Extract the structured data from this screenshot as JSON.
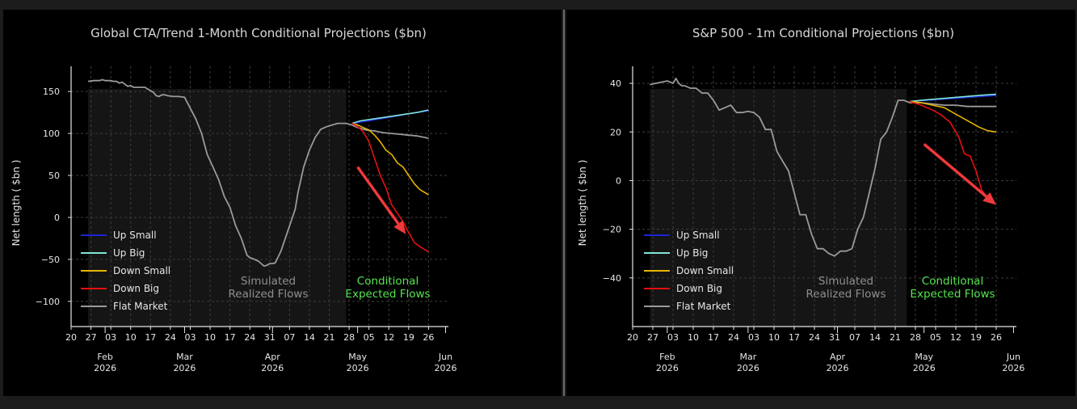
{
  "chart_data": [
    {
      "type": "line",
      "title": "Global CTA/Trend 1-Month Conditional Projections ($bn)",
      "ylabel": "Net length ( $bn )",
      "xlabel": "",
      "ylim": [
        -130,
        180
      ],
      "yticks": [
        150,
        100,
        50,
        0,
        -50,
        -100
      ],
      "ytick_labels": [
        "150",
        "100",
        "50",
        "0",
        "−50",
        "−100"
      ],
      "xticks": [
        {
          "label": "20",
          "day": 0
        },
        {
          "label": "27",
          "day": 7
        },
        {
          "label": "03",
          "day": 14
        },
        {
          "label": "10",
          "day": 21
        },
        {
          "label": "17",
          "day": 28
        },
        {
          "label": "24",
          "day": 35
        },
        {
          "label": "03",
          "day": 42
        },
        {
          "label": "10",
          "day": 49
        },
        {
          "label": "17",
          "day": 56
        },
        {
          "label": "24",
          "day": 63
        },
        {
          "label": "31",
          "day": 70
        },
        {
          "label": "07",
          "day": 77
        },
        {
          "label": "14",
          "day": 84
        },
        {
          "label": "21",
          "day": 91
        },
        {
          "label": "28",
          "day": 98
        },
        {
          "label": "05",
          "day": 105
        },
        {
          "label": "12",
          "day": 112
        },
        {
          "label": "19",
          "day": 119
        },
        {
          "label": "26",
          "day": 126
        }
      ],
      "months": [
        {
          "month": "Feb",
          "year": "2026",
          "day": 12
        },
        {
          "month": "Mar",
          "year": "2026",
          "day": 40
        },
        {
          "month": "Apr",
          "year": "2026",
          "day": 71
        },
        {
          "month": "May",
          "year": "2026",
          "day": 101
        },
        {
          "month": "Jun",
          "year": "2026",
          "day": 132
        }
      ],
      "xlim": [
        0,
        133
      ],
      "shade_x": [
        6,
        97
      ],
      "region_labels": {
        "simulated": [
          "Simulated",
          "Realized Flows"
        ],
        "conditional": [
          "Conditional",
          "Expected Flows"
        ]
      },
      "legend": [
        "Up Small",
        "Up Big",
        "Down Small",
        "Down Big",
        "Flat Market"
      ],
      "series": [
        {
          "name": "Flat Market",
          "color": "#9a9a9a",
          "x": [
            6,
            8,
            10,
            11,
            12,
            13,
            14,
            15,
            16,
            17,
            18,
            20,
            21,
            22,
            24,
            26,
            28,
            29,
            30,
            31,
            32,
            33,
            34,
            36,
            38,
            40,
            42,
            44,
            46,
            48,
            50,
            52,
            54,
            56,
            58,
            60,
            61,
            62,
            63,
            64,
            66,
            68,
            69,
            70,
            71,
            72,
            74,
            76,
            78,
            79,
            80,
            82,
            84,
            86,
            88,
            90,
            92,
            94,
            97,
            99,
            101,
            104,
            107,
            110,
            113,
            116,
            119,
            122,
            125,
            126
          ],
          "y": [
            162,
            163,
            163,
            164,
            163,
            163,
            163,
            162,
            162,
            160,
            161,
            156,
            157,
            155,
            155,
            155,
            151,
            149,
            145,
            144,
            146,
            146,
            145,
            144,
            144,
            143,
            130,
            117,
            100,
            75,
            60,
            45,
            25,
            12,
            -10,
            -25,
            -35,
            -45,
            -48,
            -49,
            -52,
            -58,
            -57,
            -55,
            -55,
            -54,
            -40,
            -20,
            0,
            10,
            30,
            60,
            80,
            95,
            105,
            108,
            110,
            112,
            112,
            110,
            107,
            104,
            103,
            101,
            100,
            99,
            98,
            97,
            95,
            94
          ]
        },
        {
          "name": "Up Small",
          "color": "#1e24d8",
          "x": [
            99,
            105,
            110,
            115,
            120,
            126
          ],
          "y": [
            112,
            115,
            118,
            121,
            124,
            127
          ]
        },
        {
          "name": "Up Big",
          "color": "#7fe6d6",
          "x": [
            99,
            102,
            106,
            110,
            114,
            118,
            122,
            126
          ],
          "y": [
            112,
            115,
            117,
            119,
            121,
            123,
            125,
            128
          ]
        },
        {
          "name": "Down Small",
          "color": "#e6b400",
          "x": [
            99,
            101,
            103,
            105,
            107,
            109,
            111,
            113,
            115,
            117,
            119,
            121,
            123,
            126
          ],
          "y": [
            112,
            110,
            107,
            104,
            98,
            90,
            80,
            75,
            65,
            60,
            50,
            40,
            33,
            27
          ]
        },
        {
          "name": "Down Big",
          "color": "#e60f0f",
          "x": [
            99,
            101,
            103,
            105,
            107,
            109,
            111,
            113,
            115,
            117,
            119,
            121,
            123,
            126
          ],
          "y": [
            112,
            108,
            102,
            90,
            70,
            50,
            35,
            15,
            5,
            -5,
            -18,
            -30,
            -35,
            -41
          ]
        }
      ],
      "arrow": {
        "from": [
          101,
          60
        ],
        "to": [
          118,
          -20
        ],
        "color": "#f0393b"
      }
    },
    {
      "type": "line",
      "title": "S&P 500 - 1m Conditional Projections ($bn)",
      "ylabel": "Net length ( $bn )",
      "xlabel": "",
      "ylim": [
        -60,
        47
      ],
      "yticks": [
        40,
        20,
        0,
        -20,
        -40
      ],
      "ytick_labels": [
        "40",
        "20",
        "0",
        "−20",
        "−40"
      ],
      "xticks": [
        {
          "label": "20",
          "day": 0
        },
        {
          "label": "27",
          "day": 7
        },
        {
          "label": "03",
          "day": 14
        },
        {
          "label": "10",
          "day": 21
        },
        {
          "label": "17",
          "day": 28
        },
        {
          "label": "24",
          "day": 35
        },
        {
          "label": "03",
          "day": 42
        },
        {
          "label": "10",
          "day": 49
        },
        {
          "label": "17",
          "day": 56
        },
        {
          "label": "24",
          "day": 63
        },
        {
          "label": "31",
          "day": 70
        },
        {
          "label": "07",
          "day": 77
        },
        {
          "label": "14",
          "day": 84
        },
        {
          "label": "21",
          "day": 91
        },
        {
          "label": "28",
          "day": 98
        },
        {
          "label": "05",
          "day": 105
        },
        {
          "label": "12",
          "day": 112
        },
        {
          "label": "19",
          "day": 119
        },
        {
          "label": "26",
          "day": 126
        }
      ],
      "months": [
        {
          "month": "Feb",
          "year": "2026",
          "day": 12
        },
        {
          "month": "Mar",
          "year": "2026",
          "day": 40
        },
        {
          "month": "Apr",
          "year": "2026",
          "day": 71
        },
        {
          "month": "May",
          "year": "2026",
          "day": 101
        },
        {
          "month": "Jun",
          "year": "2026",
          "day": 132
        }
      ],
      "xlim": [
        0,
        133
      ],
      "shade_x": [
        6,
        95
      ],
      "region_labels": {
        "simulated": [
          "Simulated",
          "Realized Flows"
        ],
        "conditional": [
          "Conditional",
          "Expected Flows"
        ]
      },
      "legend": [
        "Up Small",
        "Up Big",
        "Down Small",
        "Down Big",
        "Flat Market"
      ],
      "series": [
        {
          "name": "Flat Market",
          "color": "#9a9a9a",
          "x": [
            6,
            8,
            10,
            12,
            14,
            15,
            16,
            17,
            18,
            20,
            22,
            24,
            26,
            28,
            30,
            32,
            34,
            36,
            38,
            40,
            42,
            44,
            46,
            48,
            50,
            52,
            54,
            56,
            58,
            60,
            62,
            64,
            66,
            68,
            70,
            72,
            74,
            76,
            78,
            80,
            82,
            84,
            86,
            88,
            90,
            92,
            94,
            96,
            100,
            104,
            108,
            112,
            116,
            120,
            126
          ],
          "y": [
            39.5,
            40,
            40.5,
            41,
            40,
            42,
            40,
            39,
            39,
            38,
            38,
            36,
            36,
            33,
            29,
            30,
            31,
            28,
            28,
            28.5,
            28,
            26,
            21,
            21,
            12,
            8,
            4,
            -5,
            -14,
            -14,
            -22,
            -28,
            -28,
            -30,
            -31,
            -29,
            -29,
            -28,
            -20,
            -15,
            -5,
            5,
            17,
            20,
            26,
            33,
            33,
            32,
            32,
            31.5,
            31,
            31,
            30.5,
            30.5,
            30.5
          ]
        },
        {
          "name": "Up Small",
          "color": "#1e24d8",
          "x": [
            96,
            102,
            108,
            114,
            120,
            126
          ],
          "y": [
            32.5,
            33,
            33.5,
            34,
            34.5,
            35
          ]
        },
        {
          "name": "Up Big",
          "color": "#7fe6d6",
          "x": [
            96,
            100,
            105,
            110,
            115,
            120,
            126
          ],
          "y": [
            32.5,
            33,
            33.5,
            34,
            34.5,
            35,
            35.5
          ]
        },
        {
          "name": "Down Small",
          "color": "#e6b400",
          "x": [
            96,
            100,
            104,
            108,
            111,
            114,
            117,
            120,
            123,
            126
          ],
          "y": [
            32.5,
            32,
            31,
            30,
            28,
            26,
            24,
            22,
            20.5,
            20
          ]
        },
        {
          "name": "Down Big",
          "color": "#e60f0f",
          "x": [
            96,
            100,
            104,
            107,
            110,
            113,
            115,
            117,
            119,
            121,
            123
          ],
          "y": [
            32.5,
            31,
            29,
            27,
            24,
            18,
            11,
            10,
            4,
            -4,
            -7
          ]
        }
      ],
      "arrow": {
        "from": [
          101,
          15
        ],
        "to": [
          126,
          -10
        ],
        "color": "#f0393b"
      }
    }
  ]
}
